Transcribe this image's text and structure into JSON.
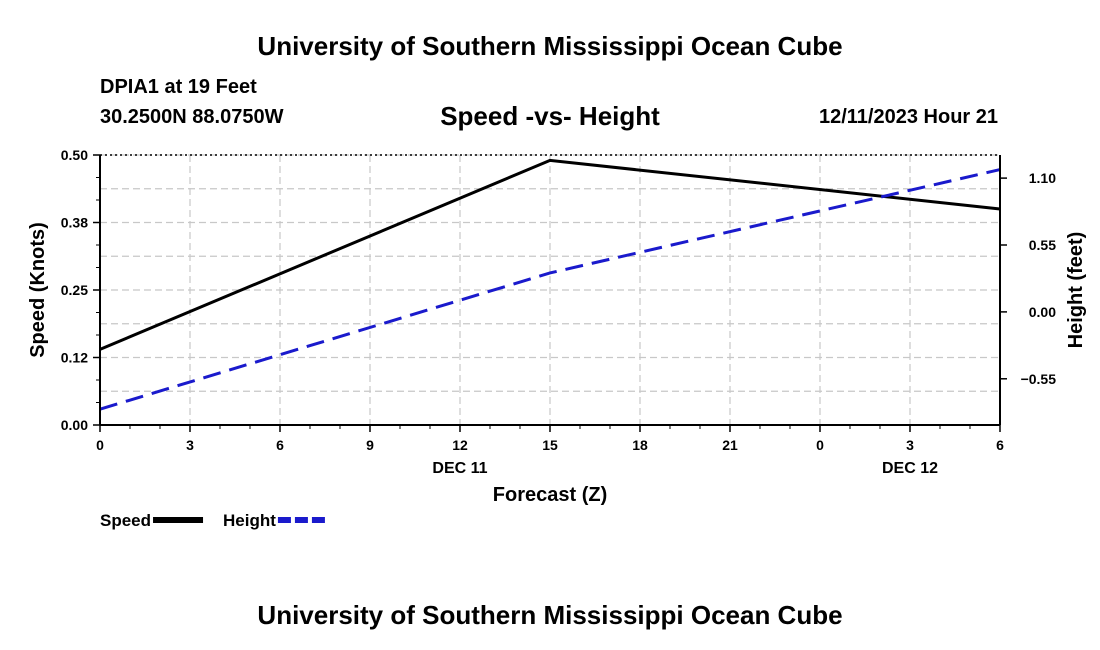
{
  "header": {
    "title": "University of Southern Mississippi Ocean Cube",
    "station": "DPIA1 at 19 Feet",
    "coordinates": "30.2500N  88.0750W",
    "timestamp": "12/11/2023 Hour 21"
  },
  "footer": {
    "title": "University of Southern Mississippi Ocean Cube"
  },
  "chart_data": {
    "type": "line",
    "title": "Speed -vs- Height",
    "xlabel": "Forecast (Z)",
    "ylabel": "Speed (Knots)",
    "y2label": "Height (feet)",
    "x_ticks": [
      "0",
      "3",
      "6",
      "9",
      "12",
      "15",
      "18",
      "21",
      "0",
      "3",
      "6"
    ],
    "x_range": [
      0,
      30
    ],
    "date_labels": [
      {
        "x": 12,
        "label": "DEC 11"
      },
      {
        "x": 27,
        "label": "DEC 12"
      }
    ],
    "ylim": [
      0,
      0.5
    ],
    "y_ticks": [
      "0.00",
      "0.12",
      "0.25",
      "0.38",
      "0.50"
    ],
    "y2lim": [
      -0.93,
      1.29
    ],
    "y2_ticks": [
      {
        "value": -0.55,
        "label": "−0.55"
      },
      {
        "value": 0.0,
        "label": "0.00"
      },
      {
        "value": 0.55,
        "label": "0.55"
      },
      {
        "value": 1.1,
        "label": "1.10"
      }
    ],
    "grid": true,
    "legend_position": "bottom-left",
    "series": [
      {
        "name": "Speed",
        "axis": "left",
        "color": "#000000",
        "dash": "solid",
        "points": [
          [
            0,
            0.14
          ],
          [
            15,
            0.49
          ],
          [
            30,
            0.4
          ]
        ]
      },
      {
        "name": "Height",
        "axis": "right",
        "color": "#1a1acc",
        "dash": "dashed",
        "points": [
          [
            0,
            -0.8
          ],
          [
            15,
            0.32
          ],
          [
            30,
            1.17
          ]
        ]
      }
    ]
  }
}
